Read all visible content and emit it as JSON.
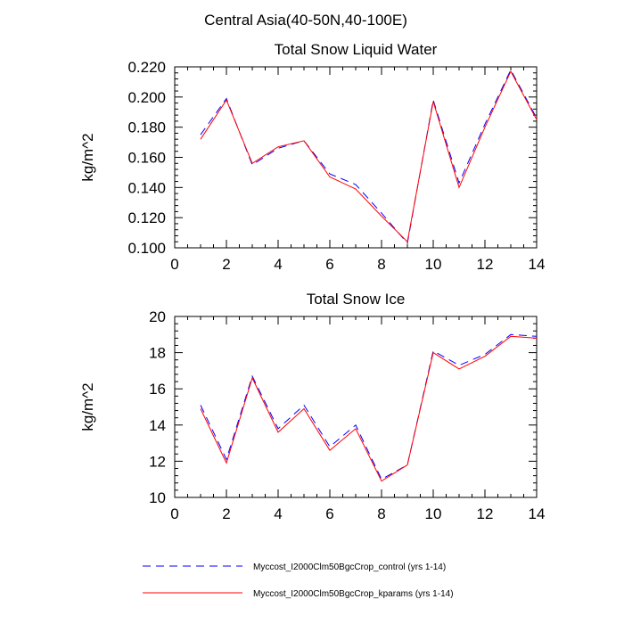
{
  "suptitle": "Central Asia(40-50N,40-100E)",
  "legend": {
    "items": [
      {
        "label": "Myccost_I2000Clm50BgcCrop_control (yrs 1-14)",
        "color": "#0000ff",
        "dash": "dashed"
      },
      {
        "label": "Myccost_I2000Clm50BgcCrop_kparams (yrs 1-14)",
        "color": "#ff0000",
        "dash": "solid"
      }
    ]
  },
  "chart_data": [
    {
      "type": "line",
      "title": "Total Snow Liquid Water",
      "xlabel": "",
      "ylabel": "kg/m^2",
      "xlim": [
        0,
        14
      ],
      "ylim": [
        0.1,
        0.22
      ],
      "xticks": [
        0,
        2,
        4,
        6,
        8,
        10,
        12,
        14
      ],
      "yticks": [
        0.1,
        0.12,
        0.14,
        0.16,
        0.18,
        0.2,
        0.22
      ],
      "ytick_labels": [
        "0.100",
        "0.120",
        "0.140",
        "0.160",
        "0.180",
        "0.200",
        "0.220"
      ],
      "x": [
        1,
        2,
        3,
        4,
        5,
        6,
        7,
        8,
        9,
        10,
        11,
        12,
        13,
        14
      ],
      "series": [
        {
          "name": "Myccost_I2000Clm50BgcCrop_control (yrs 1-14)",
          "color": "#0000ff",
          "dash": "dashed",
          "values": [
            0.175,
            0.199,
            0.155,
            0.166,
            0.171,
            0.149,
            0.142,
            0.123,
            0.103,
            0.198,
            0.143,
            0.182,
            0.218,
            0.186
          ]
        },
        {
          "name": "Myccost_I2000Clm50BgcCrop_kparams (yrs 1-14)",
          "color": "#ff0000",
          "dash": "solid",
          "values": [
            0.172,
            0.198,
            0.156,
            0.167,
            0.171,
            0.147,
            0.139,
            0.121,
            0.104,
            0.197,
            0.14,
            0.18,
            0.217,
            0.185
          ]
        }
      ]
    },
    {
      "type": "line",
      "title": "Total Snow Ice",
      "xlabel": "",
      "ylabel": "kg/m^2",
      "xlim": [
        0,
        14
      ],
      "ylim": [
        10,
        20
      ],
      "xticks": [
        0,
        2,
        4,
        6,
        8,
        10,
        12,
        14
      ],
      "yticks": [
        10,
        12,
        14,
        16,
        18,
        20
      ],
      "ytick_labels": [
        "10",
        "12",
        "14",
        "16",
        "18",
        "20"
      ],
      "x": [
        1,
        2,
        3,
        4,
        5,
        6,
        7,
        8,
        9,
        10,
        11,
        12,
        13,
        14
      ],
      "series": [
        {
          "name": "Myccost_I2000Clm50BgcCrop_control (yrs 1-14)",
          "color": "#0000ff",
          "dash": "dashed",
          "values": [
            15.1,
            12.1,
            16.7,
            13.8,
            15.1,
            12.8,
            14.0,
            11.0,
            11.8,
            18.1,
            17.3,
            17.9,
            19.0,
            18.9
          ]
        },
        {
          "name": "Myccost_I2000Clm50BgcCrop_kparams (yrs 1-14)",
          "color": "#ff0000",
          "dash": "solid",
          "values": [
            14.9,
            11.9,
            16.6,
            13.6,
            14.9,
            12.6,
            13.8,
            10.9,
            11.8,
            18.0,
            17.1,
            17.8,
            18.9,
            18.8
          ]
        }
      ]
    }
  ]
}
